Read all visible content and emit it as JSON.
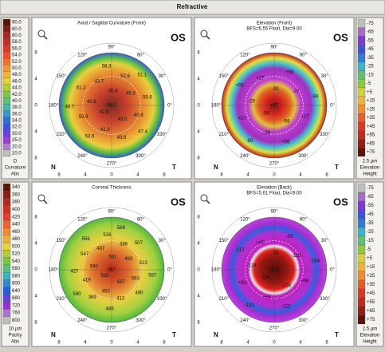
{
  "header": {
    "title": "Refractive"
  },
  "compass": [
    "90°",
    "60°",
    "30°",
    "0°",
    "330°",
    "300°",
    "270°",
    "240°",
    "210°",
    "180°",
    "150°",
    "120°"
  ],
  "axis_ticks": [
    "8",
    "4",
    "0",
    "4",
    "8"
  ],
  "nasal": "N",
  "temporal": "T",
  "eye": "OS",
  "scales": [
    {
      "labels": [
        "90.0",
        "80.0",
        "60.0",
        "58.0",
        "56.0",
        "54.0",
        "52.0",
        "50.0",
        "48.0",
        "46.0",
        "44.0",
        "42.0",
        "40.0",
        "38.0",
        "36.0",
        "34.0",
        "32.0",
        "30.0",
        "25.0",
        "20.0",
        "10.0"
      ],
      "unit": "D",
      "name": "Curvature",
      "mode": "Abs"
    },
    {
      "labels": [
        "-75",
        "-65",
        "-55",
        "-45",
        "-35",
        "-25",
        "-15",
        "-5",
        "+5",
        "+15",
        "+25",
        "+35",
        "+45",
        "+55",
        "+65",
        "+75"
      ],
      "unit": "2.5 µm",
      "name": "Elevation",
      "mode": "Height"
    },
    {
      "labels": [
        "340",
        "360",
        "380",
        "400",
        "420",
        "440",
        "460",
        "480",
        "500",
        "520",
        "540",
        "560",
        "580",
        "600",
        "640",
        "680",
        "720",
        "760",
        "800"
      ],
      "unit": "10 µm",
      "name": "Pachy",
      "mode": "Abs"
    },
    {
      "labels": [
        "-75",
        "-65",
        "-55",
        "-45",
        "-35",
        "-25",
        "-15",
        "-5",
        "+5",
        "+15",
        "+25",
        "+35",
        "+45",
        "+55",
        "+65",
        "+75"
      ],
      "unit": "2.5 µm",
      "name": "Elevation",
      "mode": "Height"
    }
  ],
  "maps": [
    {
      "title": "Axial / Sagittal Curvature (Front)",
      "labels": [
        "58.0",
        "42.9",
        "45.4",
        "43.5",
        "40.8",
        "45.3",
        "41.9",
        "43.7",
        "40.9",
        "50.8",
        "52.6",
        "43.6",
        "61.2",
        "55.6",
        "53.9",
        "58.3",
        "47.4",
        "49.7",
        "51.1"
      ]
    },
    {
      "title": "Elevation (Front)",
      "subtitle": "BFS=6.55 Float, Dia=9.00",
      "labels": [
        "+97",
        "-56",
        "-31",
        "-56",
        "-29",
        "-27",
        "-28",
        "+27",
        "+17",
        "+27",
        "+58",
        "+56",
        "+55",
        "-94",
        "-90"
      ]
    },
    {
      "title": "Corneal Thickness",
      "labels": [
        "367",
        "535",
        "591",
        "557",
        "590",
        "493",
        "450",
        "497",
        "563",
        "419",
        "386",
        "413",
        "547",
        "513",
        "369",
        "526",
        "490",
        "427",
        "507",
        "486",
        "556",
        "587",
        "590",
        "568"
      ]
    },
    {
      "title": "Elevation (Back)",
      "subtitle": "BFS=5.61 Float, Dia=9.00",
      "labels": [
        "+102",
        "-106",
        "-99",
        "-118",
        "-128",
        "-119",
        "+55",
        "+41",
        "+98",
        "+92",
        "-95",
        "-122",
        "-117",
        "-154",
        "-131"
      ]
    }
  ]
}
